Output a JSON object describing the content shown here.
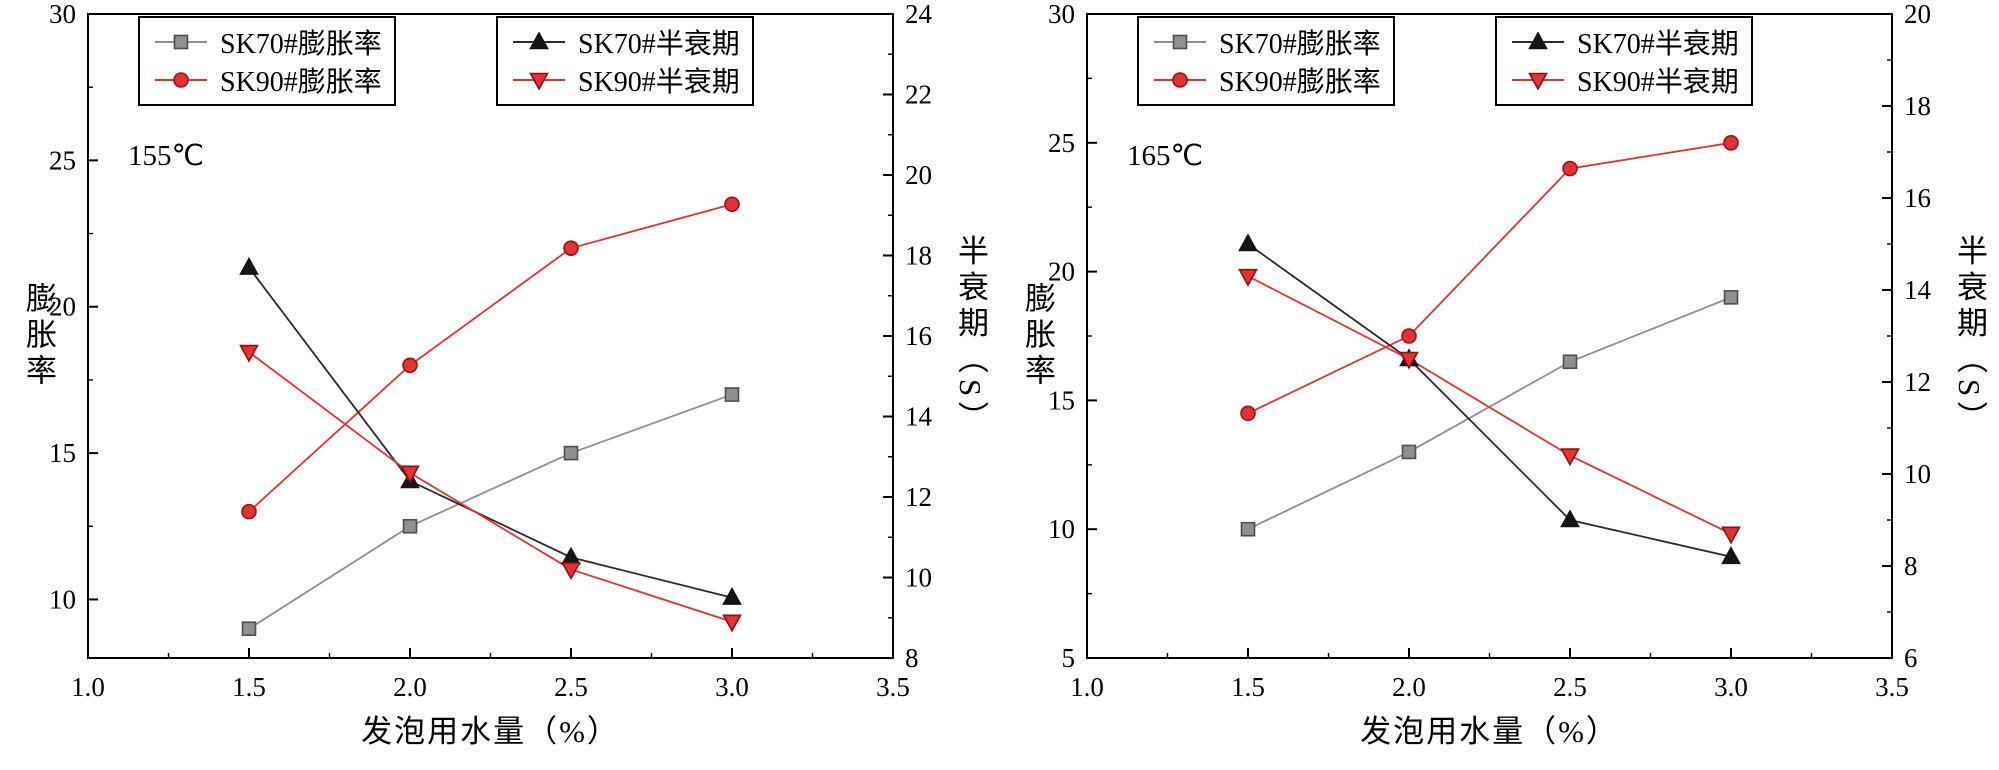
{
  "chart_data": [
    {
      "type": "line",
      "annotation": "155℃",
      "xlabel": "发泡用水量（%）",
      "ylabel_left": "膨胀率",
      "ylabel_right": "半衰期（S）",
      "x_range": [
        1.0,
        3.5
      ],
      "x_ticks": [
        1.0,
        1.5,
        2.0,
        2.5,
        3.0,
        3.5
      ],
      "left_range": [
        8,
        30
      ],
      "left_ticks": [
        10,
        15,
        20,
        25,
        30
      ],
      "right_range": [
        8,
        24
      ],
      "right_ticks": [
        8,
        10,
        12,
        14,
        16,
        18,
        20,
        22,
        24
      ],
      "x": [
        1.5,
        2.0,
        2.5,
        3.0
      ],
      "legend_position": "top-inside",
      "grid": false,
      "series": [
        {
          "name": "SK70#膨胀率",
          "axis": "left",
          "marker": "square",
          "color": "#909090",
          "edge": "#4f4f4f",
          "line": "#909090",
          "values": [
            9,
            12.5,
            15,
            17
          ]
        },
        {
          "name": "SK90#膨胀率",
          "axis": "left",
          "marker": "circle",
          "color": "#e53131",
          "edge": "#9c1111",
          "line": "#e53131",
          "values": [
            13,
            18,
            22,
            23.5
          ]
        },
        {
          "name": "SK70#半衰期",
          "axis": "right",
          "marker": "triangle-up",
          "color": "#151515",
          "edge": "#151515",
          "line": "#2b2b2b",
          "values": [
            17.7,
            12.4,
            10.5,
            9.5
          ]
        },
        {
          "name": "SK90#半衰期",
          "axis": "right",
          "marker": "triangle-down",
          "color": "#e53131",
          "edge": "#8f0f0f",
          "line": "#e53131",
          "values": [
            15.6,
            12.6,
            10.2,
            8.9
          ]
        }
      ]
    },
    {
      "type": "line",
      "annotation": "165℃",
      "xlabel": "发泡用水量（%）",
      "ylabel_left": "膨胀率",
      "ylabel_right": "半衰期（S）",
      "x_range": [
        1.0,
        3.5
      ],
      "x_ticks": [
        1.0,
        1.5,
        2.0,
        2.5,
        3.0,
        3.5
      ],
      "left_range": [
        5,
        30
      ],
      "left_ticks": [
        5,
        10,
        15,
        20,
        25,
        30
      ],
      "right_range": [
        6,
        20
      ],
      "right_ticks": [
        6,
        8,
        10,
        12,
        14,
        16,
        18,
        20
      ],
      "x": [
        1.5,
        2.0,
        2.5,
        3.0
      ],
      "legend_position": "top-inside",
      "grid": false,
      "series": [
        {
          "name": "SK70#膨胀率",
          "axis": "left",
          "marker": "square",
          "color": "#909090",
          "edge": "#4f4f4f",
          "line": "#909090",
          "values": [
            10,
            13,
            16.5,
            19
          ]
        },
        {
          "name": "SK90#膨胀率",
          "axis": "left",
          "marker": "circle",
          "color": "#e53131",
          "edge": "#9c1111",
          "line": "#e53131",
          "values": [
            14.5,
            17.5,
            24,
            25
          ]
        },
        {
          "name": "SK70#半衰期",
          "axis": "right",
          "marker": "triangle-up",
          "color": "#151515",
          "edge": "#151515",
          "line": "#2b2b2b",
          "values": [
            15.0,
            12.5,
            9.0,
            8.2
          ]
        },
        {
          "name": "SK90#半衰期",
          "axis": "right",
          "marker": "triangle-down",
          "color": "#e53131",
          "edge": "#8f0f0f",
          "line": "#e53131",
          "values": [
            14.3,
            12.5,
            10.4,
            8.7
          ]
        }
      ]
    }
  ],
  "colors": {
    "background": "#ffffff",
    "axis": "#000000"
  }
}
